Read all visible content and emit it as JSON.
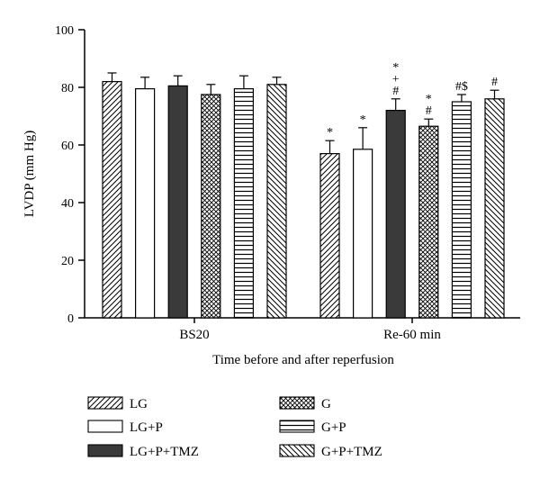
{
  "chart_data": {
    "type": "bar",
    "xlabel": "Time before and after reperfusion",
    "ylabel": "LVDP (mm Hg)",
    "ylim": [
      0,
      100
    ],
    "yticks": [
      0,
      20,
      40,
      60,
      80,
      100
    ],
    "categories": [
      "BS20",
      "Re-60 min"
    ],
    "legend_position": "bottom",
    "series": [
      {
        "name": "LG",
        "pattern": "diagonal-up",
        "values": [
          82,
          57
        ],
        "errors": [
          3,
          4.5
        ],
        "annotations": [
          "",
          "*"
        ]
      },
      {
        "name": "LG+P",
        "pattern": "white",
        "values": [
          79.5,
          58.5
        ],
        "errors": [
          4,
          7.5
        ],
        "annotations": [
          "",
          "*"
        ]
      },
      {
        "name": "LG+P+TMZ",
        "pattern": "solid-dark",
        "values": [
          80.5,
          72
        ],
        "errors": [
          3.5,
          4
        ],
        "annotations": [
          "",
          "*\n+\n#"
        ]
      },
      {
        "name": "G",
        "pattern": "crosshatch",
        "values": [
          77.5,
          66.5
        ],
        "errors": [
          3.5,
          2.5
        ],
        "annotations": [
          "",
          "*\n#"
        ]
      },
      {
        "name": "G+P",
        "pattern": "horizontal",
        "values": [
          79.5,
          75
        ],
        "errors": [
          4.5,
          2.5
        ],
        "annotations": [
          "",
          "#$"
        ]
      },
      {
        "name": "G+P+TMZ",
        "pattern": "diagonal-down",
        "values": [
          81,
          76
        ],
        "errors": [
          2.5,
          3
        ],
        "annotations": [
          "",
          "#"
        ]
      }
    ]
  }
}
